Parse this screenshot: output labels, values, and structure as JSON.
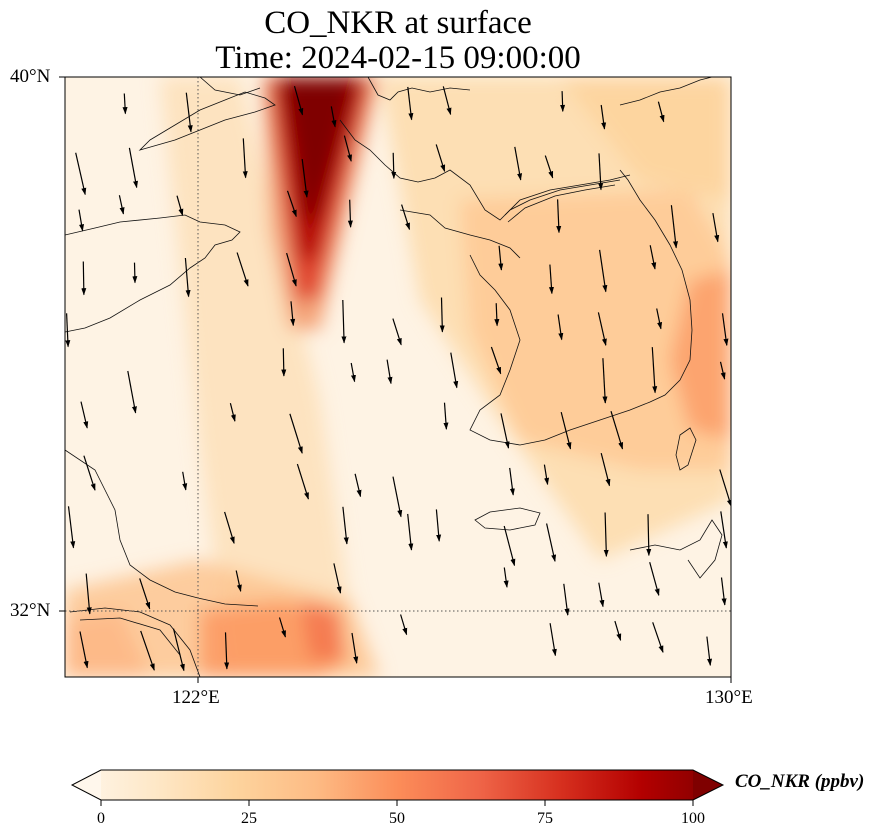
{
  "title": {
    "line1": "CO_NKR at surface",
    "line2": "Time: 2024-02-15 09:00:00"
  },
  "map": {
    "lat_range": [
      31.0,
      40.0
    ],
    "lon_range": [
      120.0,
      130.0
    ],
    "lat_ticks": [
      {
        "value": 40,
        "label": "40°N"
      },
      {
        "value": 32,
        "label": "32°N"
      }
    ],
    "lon_ticks": [
      {
        "value": 122,
        "label": "122°E"
      },
      {
        "value": 130,
        "label": "130°E"
      }
    ],
    "gridlines": "dotted",
    "field": "CO_NKR",
    "colormap": "OrRd"
  },
  "colorbar": {
    "label": "CO_NKR (ppbv)",
    "min": 0,
    "max": 100,
    "extend": "both",
    "ticks": [
      {
        "value": 0,
        "label": "0"
      },
      {
        "value": 25,
        "label": "25"
      },
      {
        "value": 50,
        "label": "50"
      },
      {
        "value": 75,
        "label": "75"
      },
      {
        "value": 100,
        "label": "100"
      }
    ],
    "colors": [
      "#fff7ec",
      "#fee8c8",
      "#fdd49e",
      "#fdbb84",
      "#fc8d59",
      "#ef6548",
      "#d7301f",
      "#b30000",
      "#7f0000"
    ]
  }
}
